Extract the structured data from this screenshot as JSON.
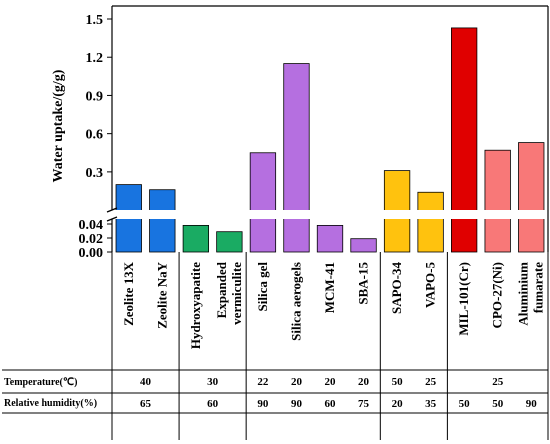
{
  "chart_data": {
    "type": "bar",
    "ylabel": "Water uptake/(g/g)",
    "y_axis_break": true,
    "lower_segment": {
      "ylim": [
        0,
        0.04
      ],
      "ticks": [
        "0.00",
        "0.02",
        "0.04"
      ]
    },
    "upper_segment": {
      "ylim": [
        0.04,
        1.5
      ],
      "ticks": [
        "0.3",
        "0.6",
        "0.9",
        "1.2",
        "1.5"
      ]
    },
    "categories": [
      "Zeolite 13X",
      "Zeolite NaY",
      "Hydroxyapatite",
      "Expanded vermiculite",
      "Silica gel",
      "Silica aerogels",
      "MCM-41",
      "SBA-15",
      "SAPO-34",
      "VAPO-5",
      "MIL-101(Cr)",
      "CPO-27(Ni)",
      "Aluminium fumarate"
    ],
    "category_label_lines": [
      [
        "Zeolite 13X"
      ],
      [
        "Zeolite NaY"
      ],
      [
        "Hydroxyapatite"
      ],
      [
        "Expanded",
        "vermiculite"
      ],
      [
        "Silica gel"
      ],
      [
        "Silica aerogels"
      ],
      [
        "MCM-41"
      ],
      [
        "SBA-15"
      ],
      [
        "SAPO-34"
      ],
      [
        "VAPO-5"
      ],
      [
        "MIL-101(Cr)"
      ],
      [
        "CPO-27(Ni)"
      ],
      [
        "Aluminium",
        "fumarate"
      ]
    ],
    "values": [
      0.2,
      0.16,
      0.038,
      0.029,
      0.45,
      1.15,
      0.038,
      0.019,
      0.31,
      0.14,
      1.43,
      0.47,
      0.53
    ],
    "colors": [
      "#1874e0",
      "#1874e0",
      "#1aab63",
      "#1aab63",
      "#b56fe0",
      "#b56fe0",
      "#b56fe0",
      "#b56fe0",
      "#ffc20e",
      "#ffc20e",
      "#e00000",
      "#f87878",
      "#f87878"
    ],
    "groups": [
      2,
      2,
      4,
      2,
      3
    ],
    "conditions": {
      "temperature_label": "Temperature(℃)",
      "temperature_values": [
        {
          "cols": [
            0,
            1
          ],
          "text": "40"
        },
        {
          "cols": [
            2,
            3
          ],
          "text": "30"
        },
        {
          "cols": [
            4
          ],
          "text": "22"
        },
        {
          "cols": [
            5
          ],
          "text": "20"
        },
        {
          "cols": [
            6
          ],
          "text": "20"
        },
        {
          "cols": [
            7
          ],
          "text": "20"
        },
        {
          "cols": [
            8
          ],
          "text": "50"
        },
        {
          "cols": [
            9
          ],
          "text": "25"
        },
        {
          "cols": [
            10,
            11,
            12
          ],
          "text": "25"
        }
      ],
      "humidity_label": "Relative humidity(%)",
      "humidity_values": [
        {
          "cols": [
            0,
            1
          ],
          "text": "65"
        },
        {
          "cols": [
            2,
            3
          ],
          "text": "60"
        },
        {
          "cols": [
            4
          ],
          "text": "90"
        },
        {
          "cols": [
            5
          ],
          "text": "90"
        },
        {
          "cols": [
            6
          ],
          "text": "60"
        },
        {
          "cols": [
            7
          ],
          "text": "75"
        },
        {
          "cols": [
            8
          ],
          "text": "20"
        },
        {
          "cols": [
            9
          ],
          "text": "35"
        },
        {
          "cols": [
            10
          ],
          "text": "50"
        },
        {
          "cols": [
            11
          ],
          "text": "50"
        },
        {
          "cols": [
            12
          ],
          "text": "90"
        }
      ]
    }
  }
}
